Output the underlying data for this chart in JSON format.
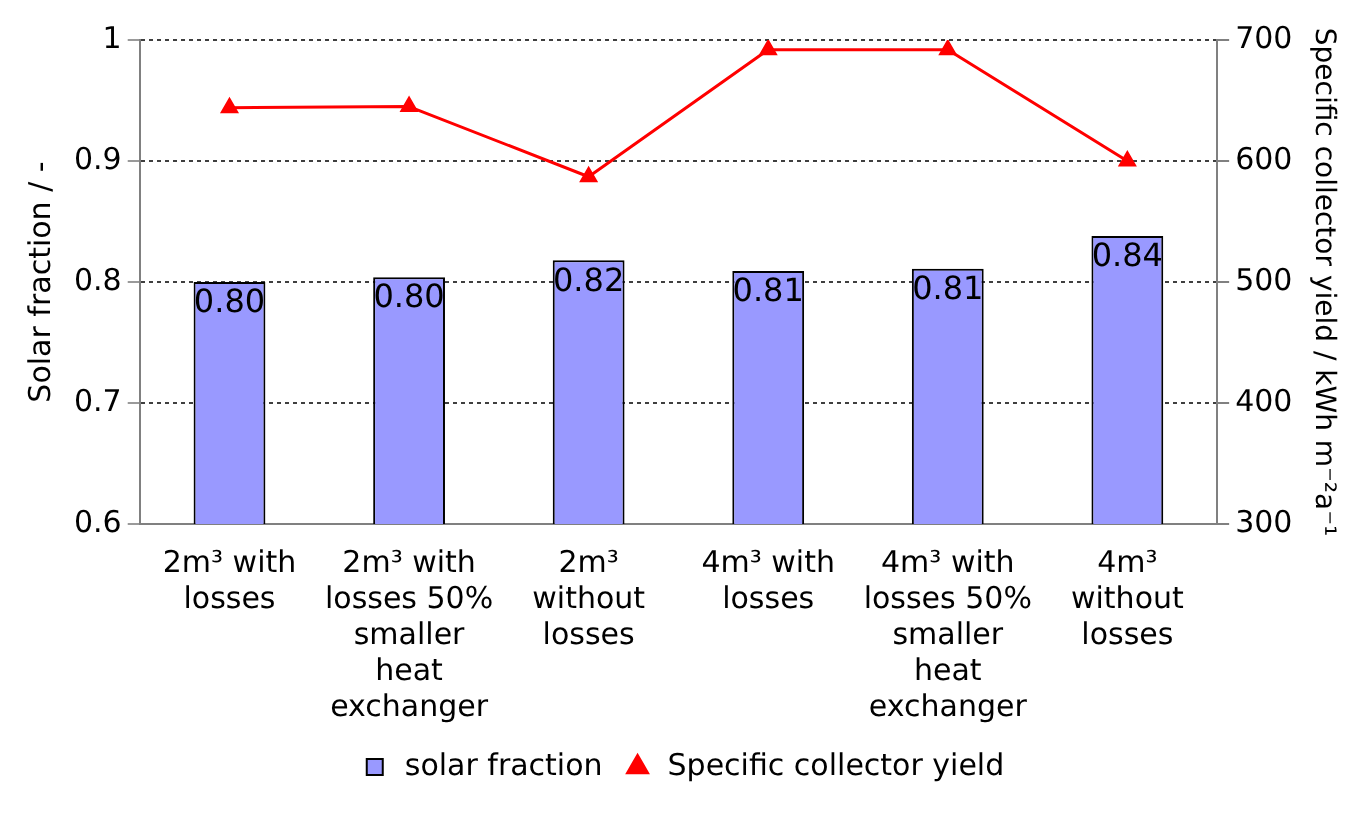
{
  "chart_data": {
    "type": "bar",
    "ylabel": "Solar fraction / -",
    "y2label": "Specific collector yield / kWh m⁻²a⁻¹",
    "categories": [
      "2m³ with losses",
      "2m³ with losses 50% smaller heat exchanger",
      "2m³ without losses",
      "4m³ with losses",
      "4m³ with losses 50% smaller heat exchanger",
      "4m³ without losses"
    ],
    "series": [
      {
        "name": "solar fraction",
        "color": "#9999ff",
        "values": [
          0.8,
          0.804,
          0.818,
          0.809,
          0.811,
          0.838
        ],
        "value_labels": [
          "0.80",
          "0.80",
          "0.82",
          "0.81",
          "0.81",
          "0.84"
        ]
      },
      {
        "name": "Specific collector yield",
        "type": "line",
        "axis": "y2",
        "color": "#ff0000",
        "marker": "triangle",
        "values": [
          644,
          645,
          587,
          692,
          692,
          600
        ]
      }
    ],
    "ylim": [
      0.6,
      1
    ],
    "yticks": [
      {
        "value": 0.6,
        "label": "0.6"
      },
      {
        "value": 0.7,
        "label": "0.7"
      },
      {
        "value": 0.8,
        "label": "0.8"
      },
      {
        "value": 0.9,
        "label": "0.9"
      },
      {
        "value": 1,
        "label": "1"
      }
    ],
    "y2lim": [
      300,
      700
    ],
    "y2ticks": [
      300,
      400,
      500,
      600,
      700
    ],
    "grid": "y",
    "legend": "bottom"
  }
}
